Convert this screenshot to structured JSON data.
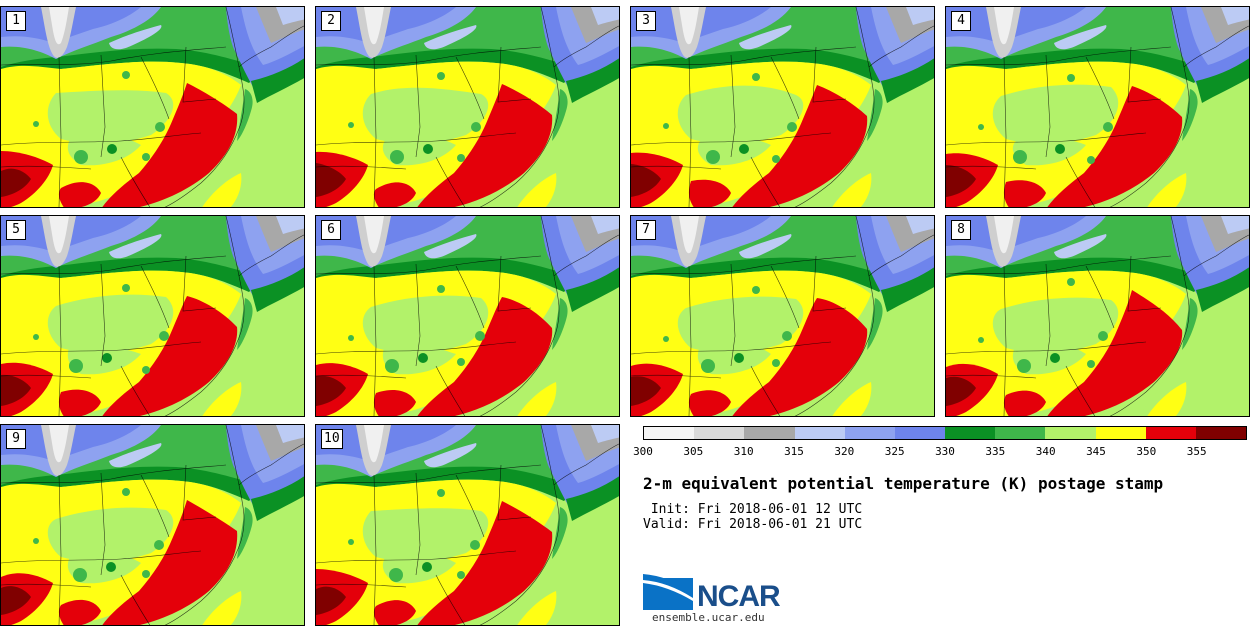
{
  "panels": [
    {
      "label": "1"
    },
    {
      "label": "2"
    },
    {
      "label": "3"
    },
    {
      "label": "4"
    },
    {
      "label": "5"
    },
    {
      "label": "6"
    },
    {
      "label": "7"
    },
    {
      "label": "8"
    },
    {
      "label": "9"
    },
    {
      "label": "10"
    }
  ],
  "colorbar": {
    "colors": [
      "#f5f5f5",
      "#dadada",
      "#a8a8a8",
      "#bccbf4",
      "#8ea2f0",
      "#6e84ec",
      "#0b9124",
      "#3fb74a",
      "#b2f26a",
      "#ffff14",
      "#e4000a",
      "#800000"
    ],
    "ticks": [
      "300",
      "305",
      "310",
      "315",
      "320",
      "325",
      "330",
      "335",
      "340",
      "345",
      "350",
      "355"
    ]
  },
  "title": "2-m equivalent potential temperature (K) postage stamp",
  "init": " Init: Fri 2018-06-01 12 UTC",
  "valid": "Valid: Fri 2018-06-01 21 UTC",
  "logo": {
    "name": "NCAR",
    "url": "ensemble.ucar.edu"
  }
}
